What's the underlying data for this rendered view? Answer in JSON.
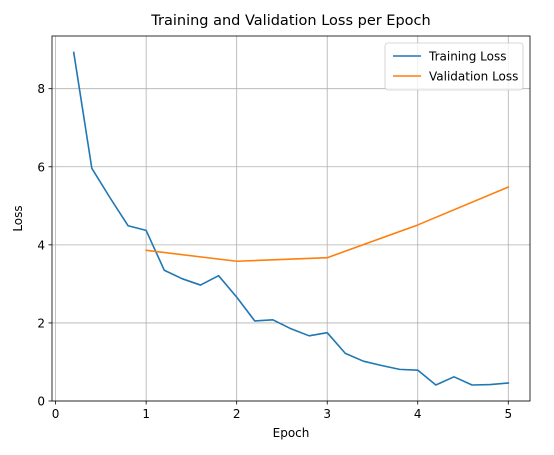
{
  "chart_data": {
    "type": "line",
    "title": "Training and Validation Loss per Epoch",
    "xlabel": "Epoch",
    "ylabel": "Loss",
    "xlim": [
      -0.04,
      5.24
    ],
    "ylim": [
      0,
      9.35
    ],
    "xticks": [
      0,
      1,
      2,
      3,
      4,
      5
    ],
    "yticks": [
      0,
      2,
      4,
      6,
      8
    ],
    "grid": true,
    "legend_position": "top-right",
    "series": [
      {
        "name": "Training Loss",
        "color": "#1f77b4",
        "x": [
          0.2,
          0.4,
          0.6,
          0.8,
          1.0,
          1.2,
          1.4,
          1.6,
          1.8,
          2.0,
          2.2,
          2.4,
          2.6,
          2.8,
          3.0,
          3.2,
          3.4,
          3.6,
          3.8,
          4.0,
          4.2,
          4.4,
          4.6,
          4.8,
          5.0
        ],
        "values": [
          8.93,
          5.96,
          5.21,
          4.49,
          4.37,
          3.35,
          3.13,
          2.97,
          3.21,
          2.66,
          2.05,
          2.08,
          1.85,
          1.67,
          1.75,
          1.22,
          1.02,
          0.91,
          0.81,
          0.79,
          0.41,
          0.62,
          0.41,
          0.42,
          0.46
        ]
      },
      {
        "name": "Validation Loss",
        "color": "#ff7f0e",
        "x": [
          1,
          2,
          3,
          4,
          5
        ],
        "values": [
          3.86,
          3.58,
          3.67,
          4.51,
          5.48
        ]
      }
    ]
  }
}
